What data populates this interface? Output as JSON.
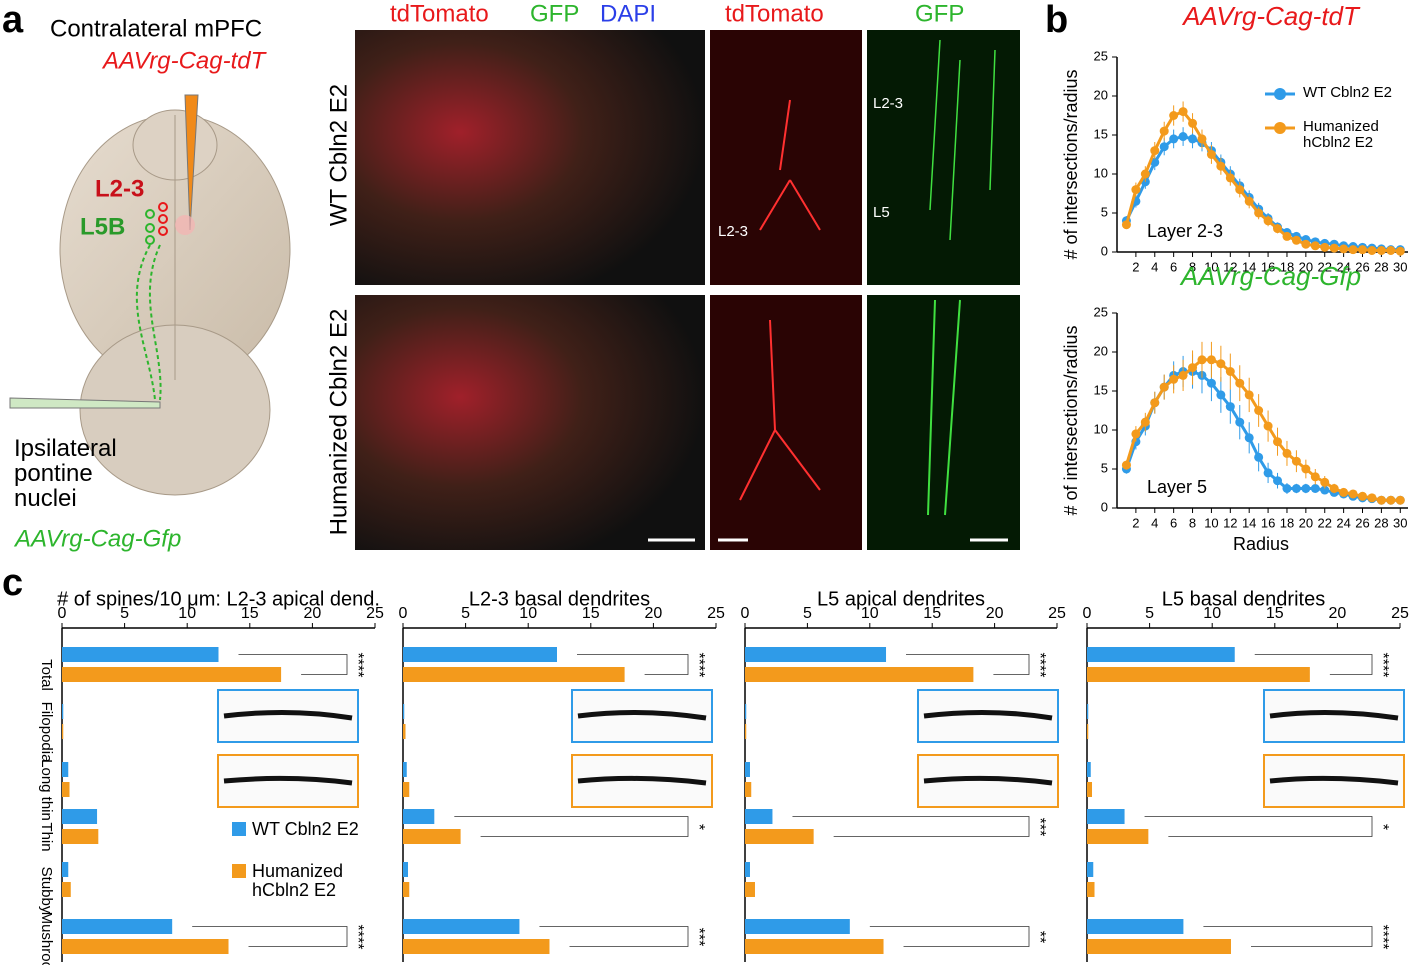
{
  "panel_labels": [
    "a",
    "b",
    "c"
  ],
  "panel_a": {
    "injection_top": "Contralateral mPFC",
    "virus_top": "AAVrg-Cag-tdT",
    "layer_red": "L2-3",
    "layer_green": "L5B",
    "injection_bottom": "Ipsilateral pontine nuclei",
    "virus_bottom": "AAVrg-Cag-Gfp",
    "headers": [
      "tdTomato",
      "GFP",
      "DAPI",
      "tdTomato",
      "GFP"
    ],
    "rows": [
      "WT Cbln2 E2",
      "Humanized Cbln2 E2"
    ],
    "image_labels": [
      "L2-3",
      "L2-3",
      "L5"
    ]
  },
  "chart_data": [
    {
      "type": "line",
      "title": "AAVrg-Cag-tdT",
      "title_color": "#e8191b",
      "ylabel": "# of intersections/radius",
      "annotation": "Layer 2-3",
      "legend": true,
      "x": [
        1,
        2,
        3,
        4,
        5,
        6,
        7,
        8,
        9,
        10,
        11,
        12,
        13,
        14,
        15,
        16,
        17,
        18,
        19,
        20,
        21,
        22,
        23,
        24,
        25,
        26,
        27,
        28,
        29,
        30
      ],
      "xlim": [
        0,
        30.5
      ],
      "xticks": [
        2,
        4,
        6,
        8,
        10,
        12,
        14,
        16,
        18,
        20,
        22,
        24,
        26,
        28,
        30
      ],
      "ylim": [
        0,
        25
      ],
      "yticks": [
        0,
        5,
        10,
        15,
        20,
        25
      ],
      "series": [
        {
          "name": "WT Cbln2 E2",
          "color": "#2f9be8",
          "values": [
            4,
            6.5,
            9,
            11.5,
            13.5,
            14.5,
            14.8,
            14.5,
            14,
            13,
            11.5,
            10,
            8.5,
            7,
            5.5,
            4.3,
            3.2,
            2.5,
            2,
            1.6,
            1.3,
            1.1,
            1,
            0.8,
            0.7,
            0.6,
            0.5,
            0.4,
            0.3,
            0.3
          ],
          "errors": [
            0.6,
            0.8,
            0.9,
            1,
            1.1,
            1.2,
            1.2,
            1.2,
            1.1,
            1.1,
            1,
            1,
            0.9,
            0.9,
            0.8,
            0.7,
            0.6,
            0.5,
            0.4,
            0.4,
            0.3,
            0.3,
            0.3,
            0.2,
            0.2,
            0.2,
            0.2,
            0.1,
            0.1,
            0.1
          ]
        },
        {
          "name": "Humanized hCbln2 E2",
          "color": "#f39a1c",
          "values": [
            3.5,
            8,
            10,
            13,
            15.5,
            17.5,
            18,
            16.5,
            14.5,
            12.5,
            11,
            9.5,
            8,
            6.5,
            5,
            4,
            3,
            2,
            1.5,
            1,
            0.8,
            0.6,
            0.5,
            0.4,
            0.3,
            0.3,
            0.2,
            0.2,
            0.2,
            0.1
          ],
          "errors": [
            0.5,
            0.9,
            1,
            1.1,
            1.2,
            1.3,
            1.3,
            1.3,
            1.2,
            1.2,
            1.1,
            1,
            1,
            0.9,
            0.8,
            0.7,
            0.6,
            0.5,
            0.4,
            0.3,
            0.3,
            0.2,
            0.2,
            0.2,
            0.1,
            0.1,
            0.1,
            0.1,
            0.1,
            0.1
          ]
        }
      ]
    },
    {
      "type": "line",
      "title": "AAVrg-Cag-Gfp",
      "title_color": "#2db52d",
      "ylabel": "# of intersections/radius",
      "xlabel": "Radius",
      "annotation": "Layer 5",
      "legend": false,
      "x": [
        1,
        2,
        3,
        4,
        5,
        6,
        7,
        8,
        9,
        10,
        11,
        12,
        13,
        14,
        15,
        16,
        17,
        18,
        19,
        20,
        21,
        22,
        23,
        24,
        25,
        26,
        27,
        28,
        29,
        30
      ],
      "xlim": [
        0,
        30.5
      ],
      "xticks": [
        2,
        4,
        6,
        8,
        10,
        12,
        14,
        16,
        18,
        20,
        22,
        24,
        26,
        28,
        30
      ],
      "ylim": [
        0,
        25
      ],
      "yticks": [
        0,
        5,
        10,
        15,
        20,
        25
      ],
      "series": [
        {
          "color": "#2f9be8",
          "values": [
            5,
            8.5,
            10.5,
            13.5,
            15.5,
            17,
            17.5,
            17.5,
            17,
            16,
            14.5,
            13,
            11,
            9,
            6.5,
            4.5,
            3.5,
            2.5,
            2.5,
            2.5,
            2.5,
            2.3,
            2,
            1.8,
            1.5,
            1.3,
            1.2,
            1,
            1,
            1
          ],
          "errors": [
            0.6,
            1,
            1.2,
            1.4,
            1.6,
            1.8,
            2,
            2.2,
            2.3,
            2.3,
            2.3,
            2.2,
            2.2,
            2,
            1.8,
            1.3,
            1,
            0.7,
            0.6,
            0.6,
            0.5,
            0.5,
            0.5,
            0.4,
            0.4,
            0.4,
            0.3,
            0.3,
            0.3,
            0.3
          ]
        },
        {
          "color": "#f39a1c",
          "values": [
            5.5,
            9.5,
            11,
            13.5,
            15.5,
            16.5,
            17,
            18,
            19,
            19,
            18.5,
            17.5,
            16,
            14.5,
            12.5,
            10.5,
            8.5,
            7,
            6,
            5,
            4,
            3.3,
            2.5,
            2,
            1.8,
            1.5,
            1.3,
            1,
            1,
            1
          ],
          "errors": [
            0.6,
            1,
            1.2,
            1.4,
            1.6,
            1.8,
            2,
            2.2,
            2.3,
            2.3,
            2.3,
            2.3,
            2.3,
            2.2,
            2.1,
            2,
            1.8,
            1.6,
            1.4,
            1.2,
            1,
            0.8,
            0.6,
            0.5,
            0.5,
            0.4,
            0.4,
            0.3,
            0.3,
            0.3
          ]
        }
      ]
    },
    {
      "type": "bar",
      "title": "# of spines/10 μm: L2-3 apical dend.",
      "legend": true,
      "categories": [
        "Total",
        "Filopodia",
        "Long thin",
        "Thin",
        "Stubby",
        "Mushroom"
      ],
      "xlim": [
        0,
        25
      ],
      "xticks": [
        0,
        5,
        10,
        15,
        20,
        25
      ],
      "significance": [
        "****",
        null,
        null,
        null,
        null,
        "****"
      ],
      "series": [
        {
          "name": "WT Cbln2 E2",
          "color": "#2f9be8",
          "values": [
            12.5,
            0.1,
            0.5,
            2.8,
            0.5,
            8.8
          ]
        },
        {
          "name": "Humanized hCbln2 E2",
          "color": "#f39a1c",
          "values": [
            17.5,
            0.1,
            0.6,
            2.9,
            0.7,
            13.3
          ]
        }
      ]
    },
    {
      "type": "bar",
      "title": "L2-3 basal dendrites",
      "legend": false,
      "categories": [
        null,
        null,
        null,
        null,
        null,
        null
      ],
      "xlim": [
        0,
        25
      ],
      "xticks": [
        0,
        5,
        10,
        15,
        20,
        25
      ],
      "significance": [
        "****",
        null,
        null,
        "*",
        null,
        "***"
      ],
      "series": [
        {
          "color": "#2f9be8",
          "values": [
            12.3,
            0.1,
            0.3,
            2.5,
            0.4,
            9.3
          ]
        },
        {
          "color": "#f39a1c",
          "values": [
            17.7,
            0.2,
            0.5,
            4.6,
            0.5,
            11.7
          ]
        }
      ]
    },
    {
      "type": "bar",
      "title": "L5 apical dendrites",
      "legend": false,
      "categories": [
        null,
        null,
        null,
        null,
        null,
        null
      ],
      "xlim": [
        0,
        25
      ],
      "xticks": [
        0,
        5,
        10,
        15,
        20,
        25
      ],
      "significance": [
        "****",
        null,
        null,
        "***",
        null,
        "**"
      ],
      "series": [
        {
          "color": "#2f9be8",
          "values": [
            11.3,
            0.1,
            0.4,
            2.2,
            0.4,
            8.4
          ]
        },
        {
          "color": "#f39a1c",
          "values": [
            18.3,
            0.1,
            0.5,
            5.5,
            0.8,
            11.1
          ]
        }
      ]
    },
    {
      "type": "bar",
      "title": "L5 basal dendrites",
      "legend": false,
      "categories": [
        null,
        null,
        null,
        null,
        null,
        null
      ],
      "xlim": [
        0,
        25
      ],
      "xticks": [
        0,
        5,
        10,
        15,
        20,
        25
      ],
      "significance": [
        "****",
        null,
        null,
        "*",
        null,
        "****"
      ],
      "series": [
        {
          "color": "#2f9be8",
          "values": [
            11.8,
            0.1,
            0.3,
            3,
            0.5,
            7.7
          ]
        },
        {
          "color": "#f39a1c",
          "values": [
            17.8,
            0.1,
            0.4,
            4.9,
            0.6,
            11.5
          ]
        }
      ]
    }
  ]
}
